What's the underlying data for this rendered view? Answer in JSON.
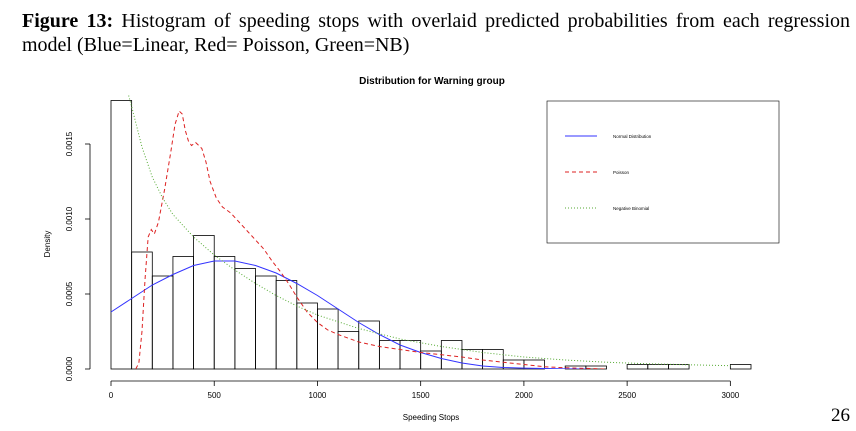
{
  "caption": {
    "label": "Figure 13:",
    "text": "Histogram of speeding stops with overlaid predicted probabilities from each regression model (Blue=Linear, Red= Poisson, Green=NB)"
  },
  "page_number": "26",
  "chart_data": {
    "type": "histogram",
    "title": "Distribution for Warning group",
    "xlabel": "Speeding Stops",
    "ylabel": "Density",
    "xlim": [
      0,
      3100
    ],
    "ylim": [
      0,
      0.0018
    ],
    "x_ticks": [
      0,
      500,
      1000,
      1500,
      2000,
      2500,
      3000
    ],
    "x_tick_labels": [
      "0",
      "500",
      "1000",
      "1500",
      "2000",
      "2500",
      "3000"
    ],
    "y_ticks": [
      0,
      0.0005,
      0.001,
      0.0015
    ],
    "y_tick_labels": [
      "0.0000",
      "0.0005",
      "0.0010",
      "0.0015"
    ],
    "grid": false,
    "legend_position": "top-right",
    "bin_width": 100,
    "bins": [
      {
        "x0": 0,
        "x1": 100,
        "density": 0.00179
      },
      {
        "x0": 100,
        "x1": 200,
        "density": 0.00078
      },
      {
        "x0": 200,
        "x1": 300,
        "density": 0.00062
      },
      {
        "x0": 300,
        "x1": 400,
        "density": 0.00075
      },
      {
        "x0": 400,
        "x1": 500,
        "density": 0.00089
      },
      {
        "x0": 500,
        "x1": 600,
        "density": 0.00075
      },
      {
        "x0": 600,
        "x1": 700,
        "density": 0.00067
      },
      {
        "x0": 700,
        "x1": 800,
        "density": 0.00062
      },
      {
        "x0": 800,
        "x1": 900,
        "density": 0.00059
      },
      {
        "x0": 900,
        "x1": 1000,
        "density": 0.00044
      },
      {
        "x0": 1000,
        "x1": 1100,
        "density": 0.0004
      },
      {
        "x0": 1100,
        "x1": 1200,
        "density": 0.00025
      },
      {
        "x0": 1200,
        "x1": 1300,
        "density": 0.00032
      },
      {
        "x0": 1300,
        "x1": 1400,
        "density": 0.00019
      },
      {
        "x0": 1400,
        "x1": 1500,
        "density": 0.00019
      },
      {
        "x0": 1500,
        "x1": 1600,
        "density": 0.00012
      },
      {
        "x0": 1600,
        "x1": 1700,
        "density": 0.00019
      },
      {
        "x0": 1700,
        "x1": 1800,
        "density": 0.00013
      },
      {
        "x0": 1800,
        "x1": 1900,
        "density": 0.00013
      },
      {
        "x0": 1900,
        "x1": 2000,
        "density": 6e-05
      },
      {
        "x0": 2000,
        "x1": 2100,
        "density": 6e-05
      },
      {
        "x0": 2200,
        "x1": 2300,
        "density": 2e-05
      },
      {
        "x0": 2300,
        "x1": 2400,
        "density": 2e-05
      },
      {
        "x0": 2500,
        "x1": 2600,
        "density": 3e-05
      },
      {
        "x0": 2600,
        "x1": 2700,
        "density": 3e-05
      },
      {
        "x0": 2700,
        "x1": 2800,
        "density": 3e-05
      },
      {
        "x0": 3000,
        "x1": 3100,
        "density": 3e-05
      }
    ],
    "series": [
      {
        "name": "Normal Distribution",
        "color": "#3333ff",
        "style": "solid",
        "x": [
          0,
          100,
          200,
          300,
          400,
          500,
          600,
          700,
          800,
          900,
          1000,
          1100,
          1200,
          1300,
          1400,
          1500,
          1600,
          1700,
          1800,
          1900,
          2000,
          2100,
          2200,
          2300
        ],
        "y": [
          0.00038,
          0.00047,
          0.00056,
          0.00063,
          0.00069,
          0.00072,
          0.00072,
          0.00069,
          0.00064,
          0.00057,
          0.00049,
          0.0004,
          0.00031,
          0.00023,
          0.00016,
          0.00011,
          7e-05,
          4e-05,
          2e-05,
          1e-05,
          6e-06,
          3e-06,
          1e-06,
          0
        ]
      },
      {
        "name": "Poisson",
        "color": "#dd2222",
        "style": "dashed",
        "x": [
          120,
          135,
          150,
          165,
          180,
          195,
          210,
          230,
          260,
          290,
          310,
          330,
          345,
          360,
          375,
          390,
          410,
          440,
          460,
          480,
          510,
          540,
          580,
          620,
          660,
          700,
          740,
          780,
          820,
          860,
          900,
          950,
          1000,
          1050,
          1100,
          1200,
          1300,
          1400,
          1500,
          1600,
          1700,
          1800,
          1900,
          2000,
          2100,
          2200,
          2400
        ],
        "y": [
          0,
          4e-05,
          0.00025,
          0.0006,
          0.00088,
          0.00093,
          0.0009,
          0.00098,
          0.0012,
          0.00145,
          0.00163,
          0.00172,
          0.0017,
          0.00159,
          0.00152,
          0.00149,
          0.00151,
          0.00147,
          0.00138,
          0.00125,
          0.00114,
          0.00108,
          0.00104,
          0.00098,
          0.00092,
          0.00086,
          0.0008,
          0.00072,
          0.00065,
          0.00057,
          0.00048,
          0.00038,
          0.00031,
          0.00026,
          0.00023,
          0.00018,
          0.00015,
          0.00013,
          0.00011,
          9.5e-05,
          8e-05,
          6e-05,
          4.5e-05,
          3e-05,
          1.5e-05,
          8e-06,
          0
        ]
      },
      {
        "name": "Negative Binomial",
        "color": "#55aa33",
        "style": "dotted",
        "x": [
          70,
          100,
          150,
          200,
          250,
          300,
          400,
          500,
          600,
          700,
          800,
          900,
          1000,
          1200,
          1400,
          1600,
          1800,
          2000,
          2200,
          2400,
          2600,
          2800,
          3000
        ],
        "y": [
          0.0019,
          0.00175,
          0.00148,
          0.00128,
          0.00114,
          0.00103,
          0.00088,
          0.00076,
          0.00066,
          0.00057,
          0.00049,
          0.00042,
          0.00036,
          0.00027,
          0.0002,
          0.00015,
          0.00011,
          8e-05,
          6e-05,
          4.5e-05,
          3.5e-05,
          2.8e-05,
          2.2e-05
        ]
      }
    ]
  }
}
